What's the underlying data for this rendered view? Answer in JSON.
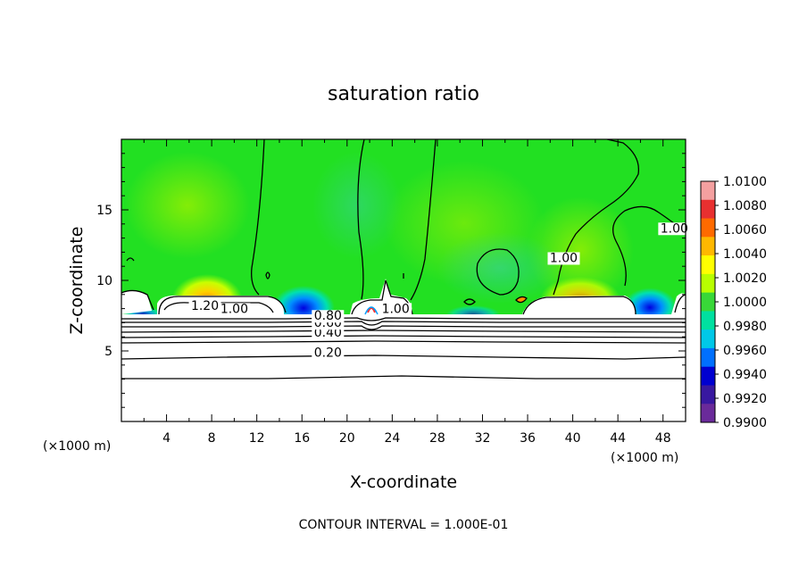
{
  "chart_data": {
    "type": "heatmap",
    "title": "saturation ratio",
    "xlabel": "X-coordinate",
    "ylabel": "Z-coordinate",
    "x_unit_left": "(×1000 m)",
    "x_unit_right": "(×1000 m)",
    "xlim": [
      0,
      50
    ],
    "ylim": [
      0,
      20
    ],
    "x_ticks": [
      4,
      8,
      12,
      16,
      20,
      24,
      28,
      32,
      36,
      40,
      44,
      48
    ],
    "y_ticks": [
      5,
      10,
      15
    ],
    "footer": "CONTOUR INTERVAL = 1.000E-01",
    "colorbar": {
      "min": 0.99,
      "max": 1.01,
      "labels": [
        "1.0100",
        "1.0080",
        "1.0060",
        "1.0040",
        "1.0020",
        "1.0000",
        "0.9980",
        "0.9960",
        "0.9940",
        "0.9920",
        "0.9900"
      ],
      "colors": [
        "#f4a0a0",
        "#e83030",
        "#ff6a00",
        "#ffb800",
        "#ffff00",
        "#b8ff00",
        "#38d838",
        "#00e0a0",
        "#00c8e8",
        "#0070ff",
        "#0000d0",
        "#3818a0",
        "#6a2a9a"
      ]
    },
    "layers": [
      {
        "x": 0,
        "y": 0,
        "value": 1.0
      },
      {
        "x": 0,
        "y": 7.6,
        "value": 1.0
      }
    ],
    "contour_labels": [
      {
        "text": "0.20",
        "x": 18.3,
        "y": 4.6
      },
      {
        "text": "0.40",
        "x": 18.3,
        "y": 6.0
      },
      {
        "text": "0.60",
        "x": 18.3,
        "y": 6.7
      },
      {
        "text": "0.80",
        "x": 18.3,
        "y": 7.2
      },
      {
        "text": "1.20",
        "x": 7.4,
        "y": 7.9
      },
      {
        "text": "1.00",
        "x": 10.0,
        "y": 7.7
      },
      {
        "text": "1.00",
        "x": 24.3,
        "y": 7.7
      },
      {
        "text": "1.00",
        "x": 39.2,
        "y": 11.3
      },
      {
        "text": "1.00",
        "x": 49.0,
        "y": 13.4
      }
    ]
  }
}
